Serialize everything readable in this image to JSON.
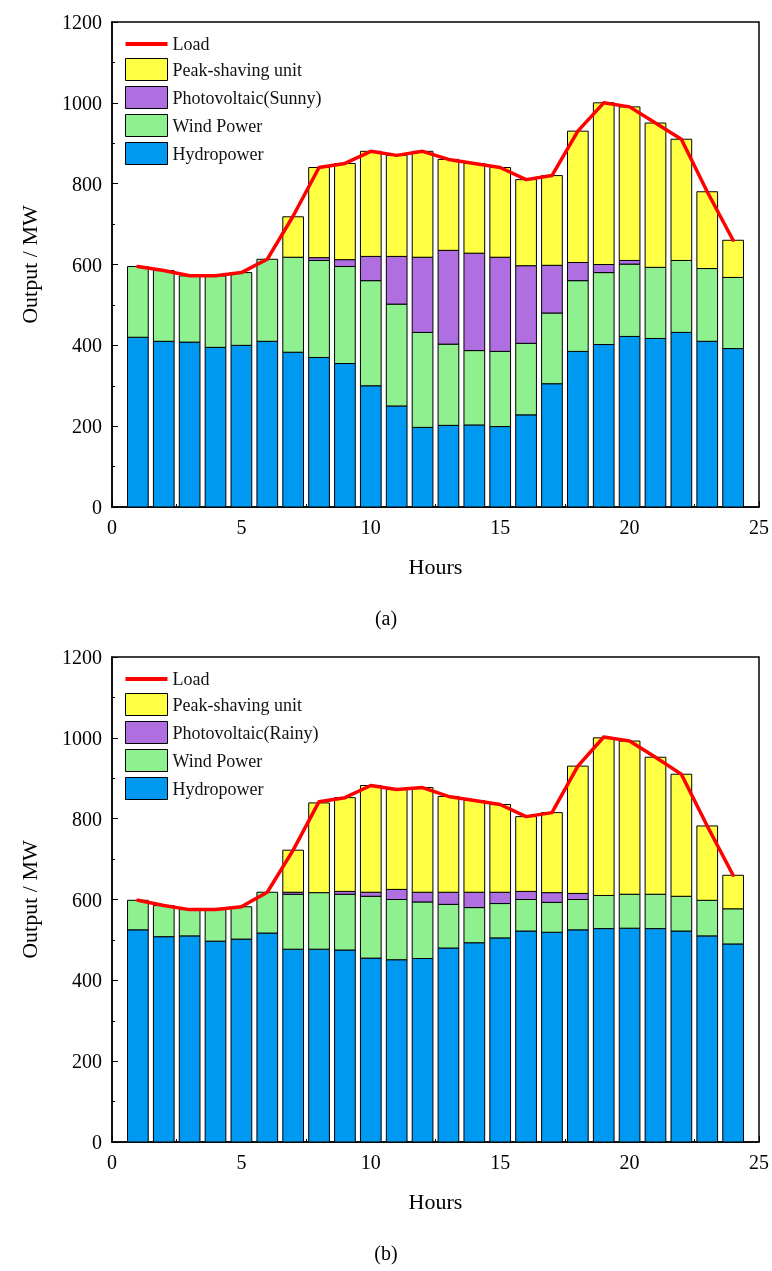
{
  "chart_data": [
    {
      "type": "bar",
      "stacked": true,
      "title": "(a)",
      "xlabel": "Hours",
      "ylabel": "Output / MW",
      "legend": "top left",
      "marker": "none",
      "line_style": "solid",
      "x": [
        1,
        2,
        3,
        4,
        5,
        6,
        7,
        8,
        9,
        10,
        11,
        12,
        13,
        14,
        15,
        16,
        17,
        18,
        19,
        20,
        21,
        22,
        23,
        24
      ],
      "xlim": [
        0,
        25
      ],
      "xticks": [
        0,
        5,
        10,
        15,
        20,
        25
      ],
      "ylim": [
        0,
        1200
      ],
      "yticks": [
        0,
        200,
        400,
        600,
        800,
        1000,
        1200
      ],
      "series": [
        {
          "name": "Hydropower",
          "color": "#0099f2",
          "values": [
            420,
            410,
            408,
            395,
            400,
            410,
            383,
            370,
            355,
            300,
            250,
            197,
            202,
            203,
            199,
            228,
            305,
            385,
            402,
            422,
            417,
            432,
            410,
            392
          ]
        },
        {
          "name": "Wind Power",
          "color": "#8ef08e",
          "values": [
            175,
            175,
            164,
            177,
            180,
            203,
            235,
            240,
            240,
            260,
            252,
            235,
            201,
            184,
            186,
            177,
            175,
            175,
            178,
            179,
            176,
            178,
            180,
            176
          ]
        },
        {
          "name": "Photovoltaic(Sunny)",
          "color": "#b06fe0",
          "values": [
            0,
            0,
            0,
            0,
            0,
            0,
            null,
            7,
            17,
            60,
            118,
            186,
            232,
            241,
            233,
            192,
            118,
            45,
            20,
            9,
            0,
            0,
            0,
            0
          ]
        },
        {
          "name": "Peak-shaving unit",
          "color": "#ffff44",
          "values": [
            0,
            0,
            0,
            0,
            0,
            0,
            100,
            223,
            238,
            260,
            250,
            262,
            225,
            222,
            222,
            213,
            222,
            325,
            400,
            380,
            357,
            300,
            190,
            92
          ]
        },
        {
          "name": "Load",
          "type": "line",
          "color": "#ff0000",
          "values": [
            595,
            585,
            572,
            572,
            580,
            613,
            720,
            840,
            850,
            880,
            870,
            880,
            860,
            850,
            840,
            810,
            820,
            930,
            1000,
            990,
            950,
            910,
            780,
            660
          ]
        }
      ]
    },
    {
      "type": "bar",
      "stacked": true,
      "title": "(b)",
      "xlabel": "Hours",
      "ylabel": "Output / MW",
      "legend": "top left",
      "marker": "none",
      "line_style": "solid",
      "x": [
        1,
        2,
        3,
        4,
        5,
        6,
        7,
        8,
        9,
        10,
        11,
        12,
        13,
        14,
        15,
        16,
        17,
        18,
        19,
        20,
        21,
        22,
        23,
        24
      ],
      "xlim": [
        0,
        25
      ],
      "xticks": [
        0,
        5,
        10,
        15,
        20,
        25
      ],
      "ylim": [
        0,
        1200
      ],
      "yticks": [
        0,
        200,
        400,
        600,
        800,
        1000,
        1200
      ],
      "series": [
        {
          "name": "Hydropower",
          "color": "#0099f2",
          "values": [
            525,
            508,
            510,
            497,
            502,
            517,
            477,
            477,
            475,
            455,
            451,
            454,
            480,
            493,
            505,
            522,
            519,
            525,
            528,
            529,
            528,
            522,
            510,
            490
          ]
        },
        {
          "name": "Wind Power",
          "color": "#8ef08e",
          "values": [
            73,
            77,
            65,
            78,
            80,
            101,
            136,
            140,
            138,
            153,
            149,
            140,
            108,
            87,
            85,
            78,
            74,
            75,
            82,
            84,
            85,
            86,
            88,
            87
          ]
        },
        {
          "name": "Photovoltaic(Rainy)",
          "color": "#b06fe0",
          "values": [
            0,
            0,
            0,
            0,
            0,
            0,
            5,
            null,
            7,
            10,
            25,
            24,
            30,
            38,
            28,
            20,
            24,
            15,
            null,
            0,
            0,
            0,
            0,
            0
          ]
        },
        {
          "name": "Peak-shaving unit",
          "color": "#ffff44",
          "values": [
            0,
            0,
            0,
            0,
            0,
            0,
            104,
            222,
            232,
            264,
            247,
            259,
            237,
            227,
            217,
            185,
            198,
            315,
            390,
            379,
            339,
            302,
            184,
            83
          ]
        },
        {
          "name": "Load",
          "type": "line",
          "color": "#ff0000",
          "values": [
            598,
            585,
            575,
            575,
            582,
            618,
            722,
            842,
            852,
            882,
            872,
            877,
            855,
            845,
            835,
            805,
            815,
            930,
            1002,
            992,
            952,
            910,
            782,
            660
          ]
        }
      ]
    }
  ]
}
